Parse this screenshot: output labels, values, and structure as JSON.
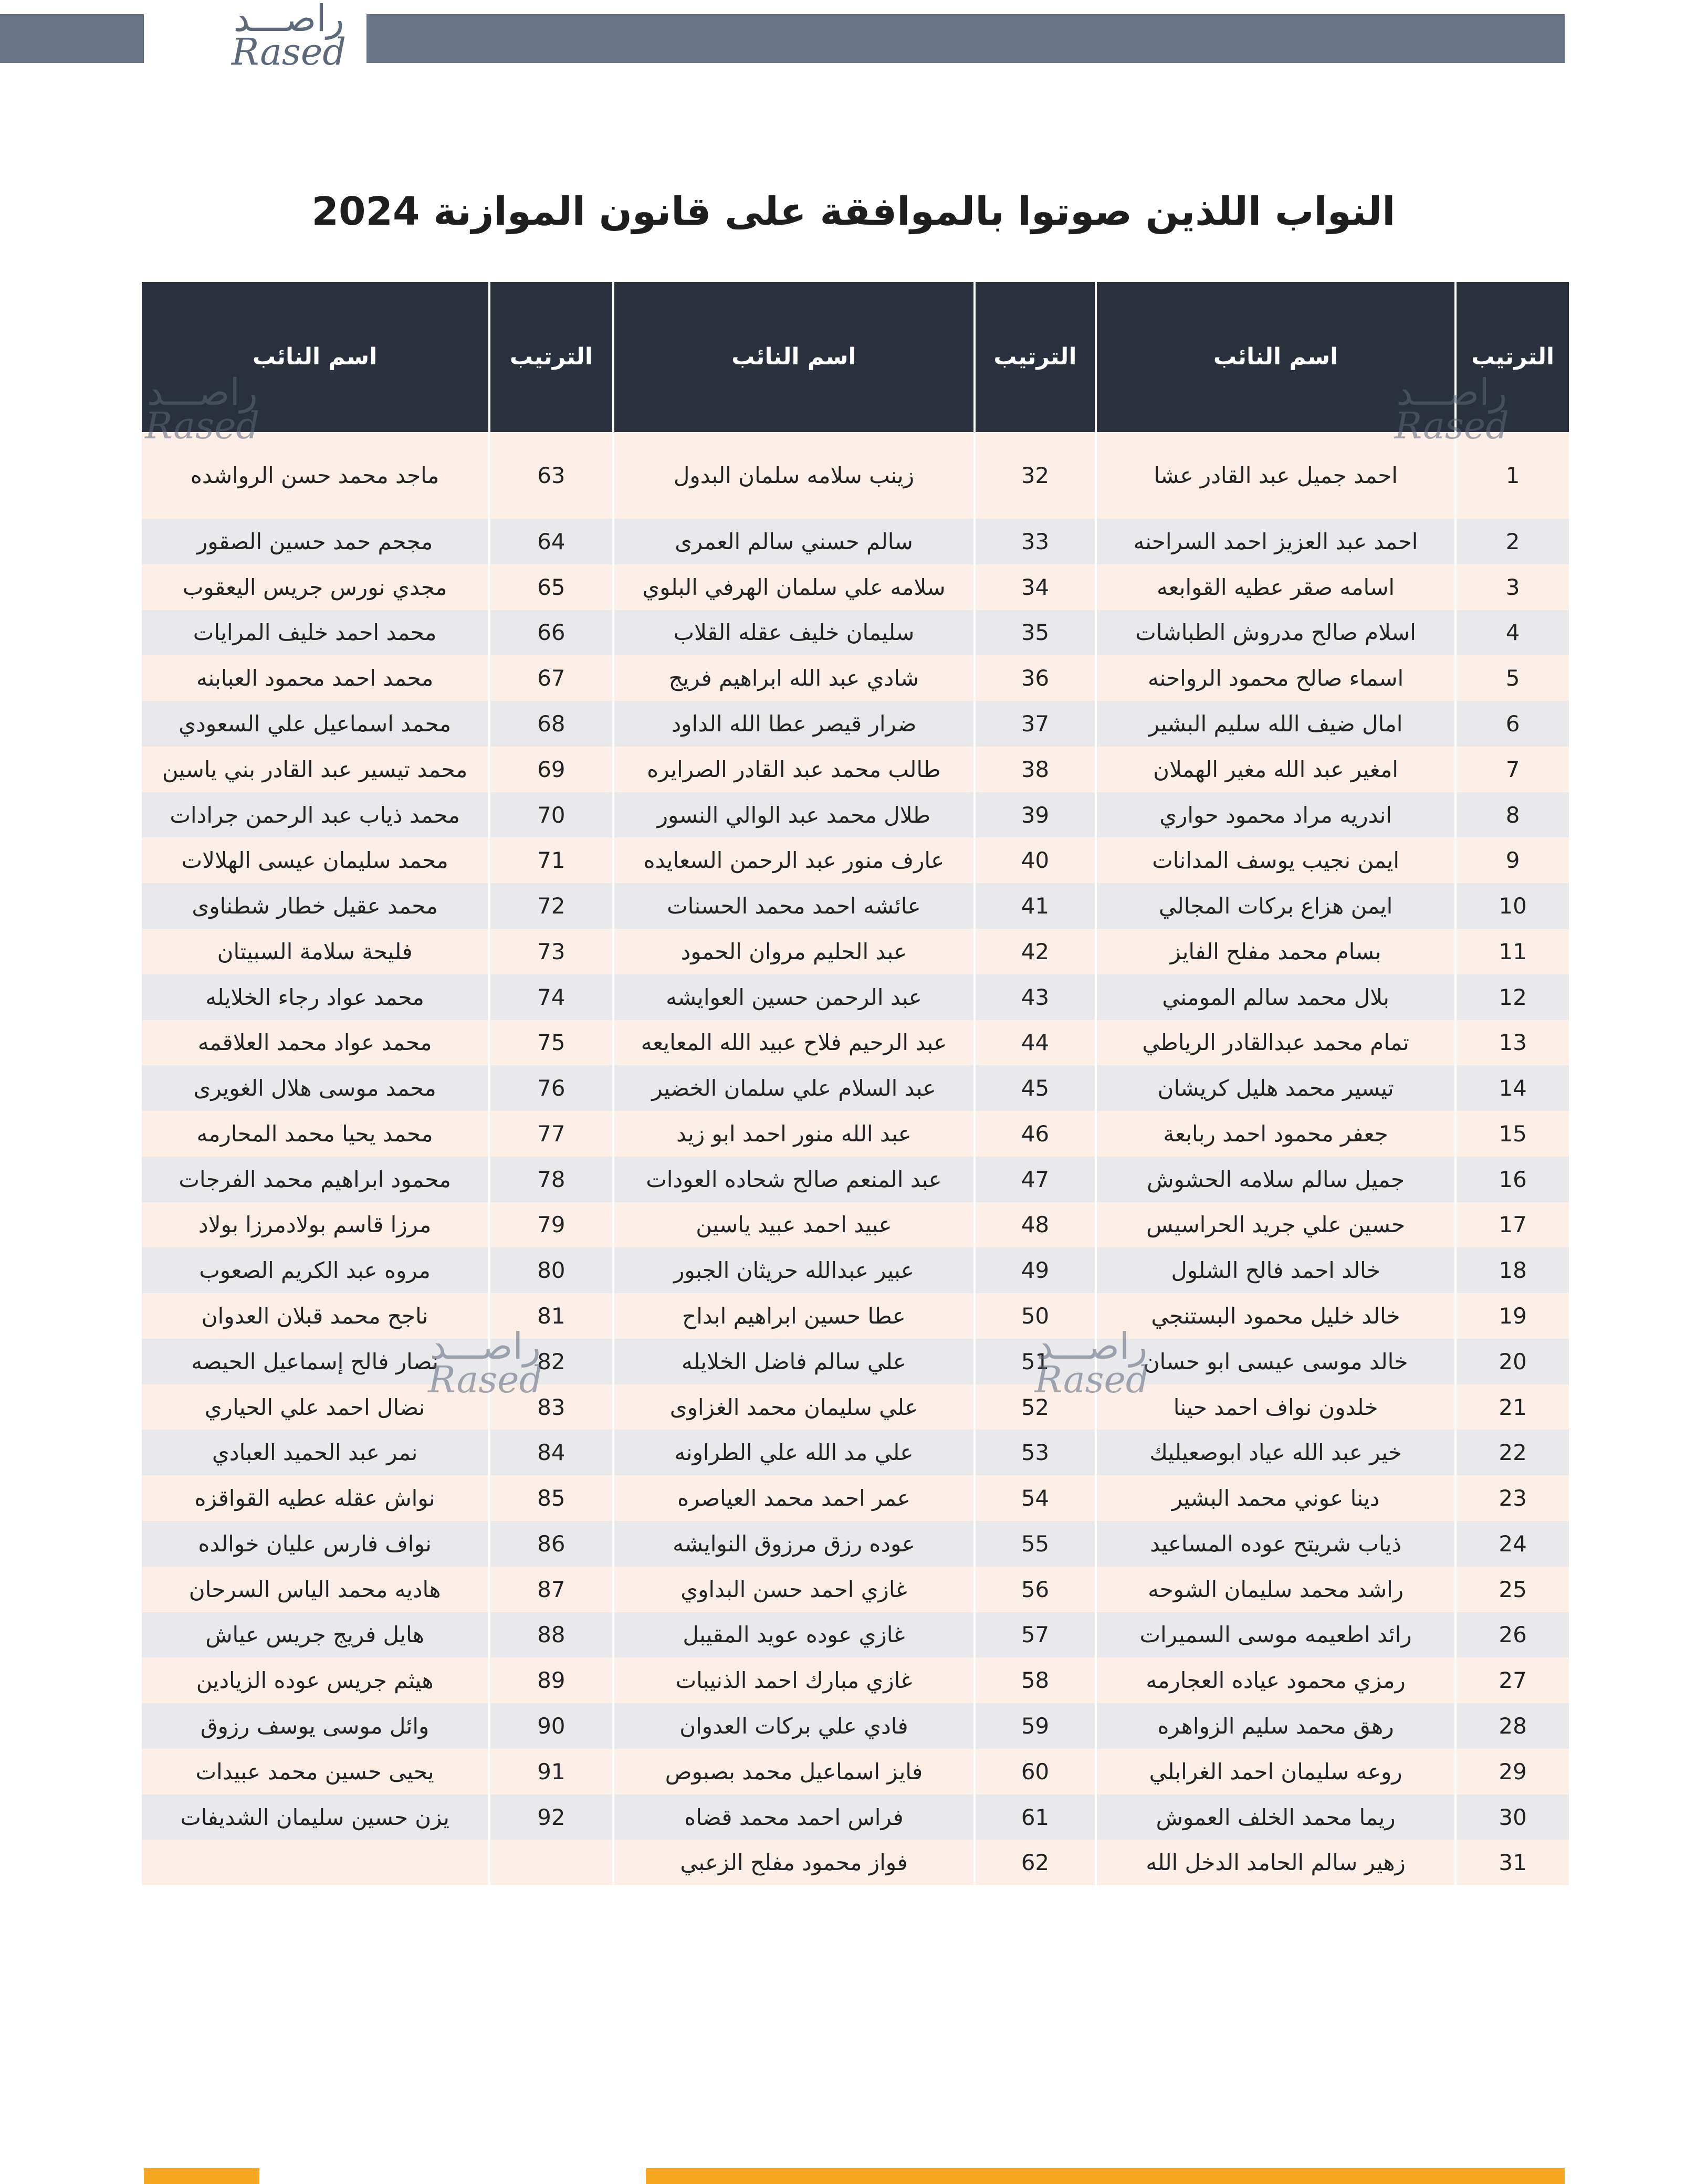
{
  "logo": {
    "arabic": "راصـــد",
    "latin": "Rased"
  },
  "title": "النواب اللذين صوتوا بالموافقة على قانون الموازنة 2024",
  "table": {
    "header": [
      "الترتيب",
      "اسم النائب",
      "الترتيب",
      "اسم النائب",
      "الترتيب",
      "اسم النائب"
    ],
    "rows": [
      [
        1,
        "احمد جميل عبد القادر عشا",
        32,
        "زينب سلامه سلمان البدول",
        63,
        "ماجد محمد حسن الرواشده"
      ],
      [
        2,
        "احمد عبد العزيز احمد السراحنه",
        33,
        "سالم حسني سالم العمرى",
        64,
        "مجحم حمد حسين الصقور"
      ],
      [
        3,
        "اسامه صقر عطيه القوابعه",
        34,
        "سلامه علي سلمان الهرفي البلوي",
        65,
        "مجدي نورس جريس اليعقوب"
      ],
      [
        4,
        "اسلام صالح مدروش الطباشات",
        35,
        "سليمان خليف عقله القلاب",
        66,
        "محمد احمد خليف المرايات"
      ],
      [
        5,
        "اسماء صالح محمود الرواحنه",
        36,
        "شادي عبد الله ابراهيم فريج",
        67,
        "محمد احمد محمود العبابنه"
      ],
      [
        6,
        "امال ضيف الله سليم البشير",
        37,
        "ضرار قيصر عطا الله الداود",
        68,
        "محمد اسماعيل علي السعودي"
      ],
      [
        7,
        "امغير عبد الله مغير الهملان",
        38,
        "طالب محمد عبد القادر الصرايره",
        69,
        "محمد تيسير عبد القادر بني ياسين"
      ],
      [
        8,
        "اندريه مراد محمود حواري",
        39,
        "طلال محمد عبد الوالي النسور",
        70,
        "محمد ذياب عبد الرحمن جرادات"
      ],
      [
        9,
        "ايمن نجيب يوسف المدانات",
        40,
        "عارف منور عبد الرحمن السعايده",
        71,
        "محمد سليمان عيسى الهلالات"
      ],
      [
        10,
        "ايمن هزاع بركات المجالي",
        41,
        "عائشه احمد محمد الحسنات",
        72,
        "محمد عقيل خطار شطناوى"
      ],
      [
        11,
        "بسام محمد مفلح الفايز",
        42,
        "عبد الحليم مروان الحمود",
        73,
        "فليحة سلامة السبيتان"
      ],
      [
        12,
        "بلال محمد سالم المومني",
        43,
        "عبد الرحمن حسين العوايشه",
        74,
        "محمد عواد رجاء الخلايله"
      ],
      [
        13,
        "تمام محمد عبدالقادر الرياطي",
        44,
        "عبد الرحيم فلاح عبيد الله المعايعه",
        75,
        "محمد عواد محمد العلاقمه"
      ],
      [
        14,
        "تيسير محمد هليل كريشان",
        45,
        "عبد السلام علي سلمان الخضير",
        76,
        "محمد موسى هلال الغويرى"
      ],
      [
        15,
        "جعفر محمود احمد ربابعة",
        46,
        "عبد الله منور احمد ابو زيد",
        77,
        "محمد يحيا محمد المحارمه"
      ],
      [
        16,
        "جميل سالم سلامه الحشوش",
        47,
        "عبد المنعم صالح شحاده العودات",
        78,
        "محمود ابراهيم محمد الفرجات"
      ],
      [
        17,
        "حسين علي جريد الحراسيس",
        48,
        "عبيد احمد عبيد ياسين",
        79,
        "مرزا قاسم بولادمرزا بولاد"
      ],
      [
        18,
        "خالد احمد فالح الشلول",
        49,
        "عبير عبدالله حريثان الجبور",
        80,
        "مروه عبد الكريم الصعوب"
      ],
      [
        19,
        "خالد خليل محمود البستنجي",
        50,
        "عطا حسين ابراهيم ابداح",
        81,
        "ناجح محمد قبلان العدوان"
      ],
      [
        20,
        "خالد موسى عيسى ابو حسان",
        51,
        "علي سالم فاضل الخلايله",
        82,
        "نصار فالح إسماعيل الحيصه"
      ],
      [
        21,
        "خلدون نواف احمد حينا",
        52,
        "علي سليمان محمد الغزاوى",
        83,
        "نضال احمد علي الحياري"
      ],
      [
        22,
        "خير عبد الله عياد ابوصعيليك",
        53,
        "علي مد الله علي الطراونه",
        84,
        "نمر عبد الحميد العبادي"
      ],
      [
        23,
        "دينا عوني محمد البشير",
        54,
        "عمر احمد محمد العياصره",
        85,
        "نواش عقله عطيه القواقزه"
      ],
      [
        24,
        "ذياب شريتح عوده المساعيد",
        55,
        "عوده رزق مرزوق النوايشه",
        86,
        "نواف فارس عليان خوالده"
      ],
      [
        25,
        "راشد محمد سليمان الشوحه",
        56,
        "غازي احمد حسن البداوي",
        87,
        "هاديه محمد الياس السرحان"
      ],
      [
        26,
        "رائد اطعيمه موسى السميرات",
        57,
        "غازي عوده عويد المقيبل",
        88,
        "هايل فريج جريس عياش"
      ],
      [
        27,
        "رمزي محمود عياده العجارمه",
        58,
        "غازي مبارك احمد الذنيبات",
        89,
        "هيثم جريس عوده الزيادين"
      ],
      [
        28,
        "رهق محمد سليم الزواهره",
        59,
        "فادي علي بركات العدوان",
        90,
        "وائل موسى يوسف رزوق"
      ],
      [
        29,
        "روعه سليمان احمد الغرابلي",
        60,
        "فايز اسماعيل محمد بصبوص",
        91,
        "يحيى حسين محمد عبيدات"
      ],
      [
        30,
        "ريما محمد الخلف العموش",
        61,
        "فراس احمد محمد قضاه",
        92,
        "يزن حسين سليمان الشديفات"
      ],
      [
        31,
        "زهير سالم الحامد الدخل الله",
        62,
        "فواز محمود مفلح الزعبي"
      ]
    ]
  }
}
